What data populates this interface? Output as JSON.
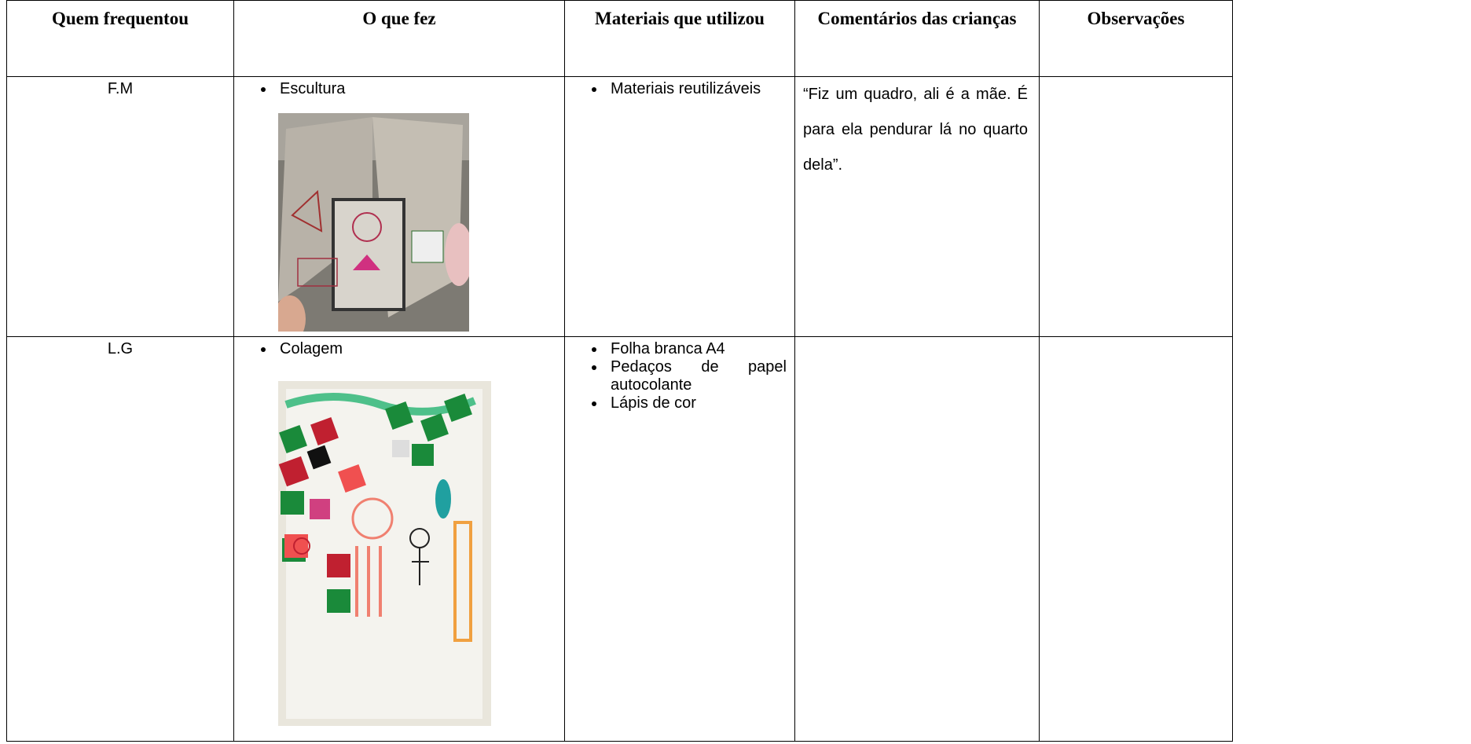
{
  "table": {
    "headers": [
      "Quem frequentou",
      "O que fez",
      "Materiais que utilizou",
      "Comentários das crianças",
      "Observações"
    ],
    "rows": [
      {
        "who": "F.M",
        "did": [
          "Escultura"
        ],
        "materials": [
          "Materiais reutilizáveis"
        ],
        "comments": "“Fiz um quadro, ali é a mãe. É para ela pendurar lá no quarto dela”."
      },
      {
        "who": "L.G",
        "did": [
          "Colagem"
        ],
        "materials": [
          "Folha branca A4",
          "Pedaços de papel autocolante",
          "Lápis de cor"
        ]
      }
    ]
  }
}
